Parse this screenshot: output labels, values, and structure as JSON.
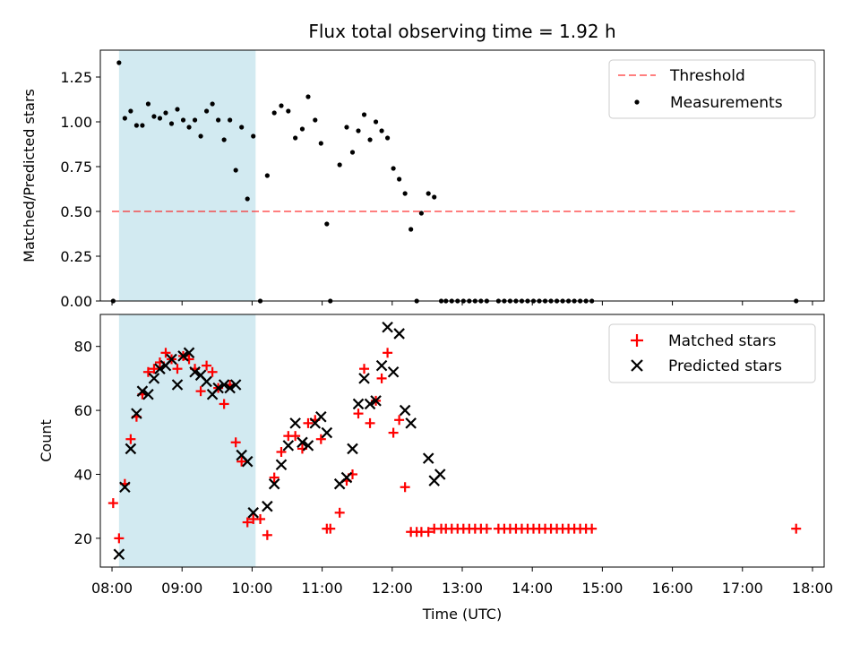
{
  "chart_data": [
    {
      "type": "scatter",
      "title": "Flux total observing time = 1.92 h",
      "xlabel": "",
      "ylabel": "Matched/Predicted stars",
      "xlim": [
        "07:50",
        "18:10"
      ],
      "ylim": [
        0,
        1.4
      ],
      "yticks": [
        0.0,
        0.25,
        0.5,
        0.75,
        1.0,
        1.25
      ],
      "ytick_labels": [
        "0.00",
        "0.25",
        "0.50",
        "0.75",
        "1.00",
        "1.25"
      ],
      "highlight_span": [
        "08:06",
        "10:03"
      ],
      "highlight_color": "#add8e6",
      "threshold": {
        "name": "Threshold",
        "y": 0.5,
        "x_range": [
          "08:00",
          "17:45"
        ],
        "color": "#ff6b6b"
      },
      "legend": {
        "placement": "top-right",
        "entries": [
          "Threshold",
          "Measurements"
        ]
      },
      "series": [
        {
          "name": "Measurements",
          "color": "#000000",
          "points": [
            [
              "08:01",
              0.0
            ],
            [
              "08:06",
              1.33
            ],
            [
              "08:11",
              1.02
            ],
            [
              "08:16",
              1.06
            ],
            [
              "08:21",
              0.98
            ],
            [
              "08:26",
              0.98
            ],
            [
              "08:31",
              1.1
            ],
            [
              "08:36",
              1.03
            ],
            [
              "08:41",
              1.02
            ],
            [
              "08:46",
              1.05
            ],
            [
              "08:51",
              0.99
            ],
            [
              "08:56",
              1.07
            ],
            [
              "09:01",
              1.01
            ],
            [
              "09:06",
              0.97
            ],
            [
              "09:11",
              1.01
            ],
            [
              "09:16",
              0.92
            ],
            [
              "09:21",
              1.06
            ],
            [
              "09:26",
              1.1
            ],
            [
              "09:31",
              1.01
            ],
            [
              "09:36",
              0.9
            ],
            [
              "09:41",
              1.01
            ],
            [
              "09:46",
              0.73
            ],
            [
              "09:51",
              0.97
            ],
            [
              "09:56",
              0.57
            ],
            [
              "10:01",
              0.92
            ],
            [
              "10:07",
              0.0
            ],
            [
              "10:13",
              0.7
            ],
            [
              "10:19",
              1.05
            ],
            [
              "10:25",
              1.09
            ],
            [
              "10:31",
              1.06
            ],
            [
              "10:37",
              0.91
            ],
            [
              "10:43",
              0.96
            ],
            [
              "10:48",
              1.14
            ],
            [
              "10:54",
              1.01
            ],
            [
              "10:59",
              0.88
            ],
            [
              "11:04",
              0.43
            ],
            [
              "11:07",
              0.0
            ],
            [
              "11:15",
              0.76
            ],
            [
              "11:21",
              0.97
            ],
            [
              "11:26",
              0.83
            ],
            [
              "11:31",
              0.95
            ],
            [
              "11:36",
              1.04
            ],
            [
              "11:41",
              0.9
            ],
            [
              "11:46",
              1.0
            ],
            [
              "11:51",
              0.95
            ],
            [
              "11:56",
              0.91
            ],
            [
              "12:01",
              0.74
            ],
            [
              "12:06",
              0.68
            ],
            [
              "12:11",
              0.6
            ],
            [
              "12:16",
              0.4
            ],
            [
              "12:21",
              0.0
            ],
            [
              "12:25",
              0.49
            ],
            [
              "12:31",
              0.6
            ],
            [
              "12:36",
              0.58
            ],
            [
              "12:42",
              0.0
            ],
            [
              "12:46",
              0.0
            ],
            [
              "12:51",
              0.0
            ],
            [
              "12:56",
              0.0
            ],
            [
              "13:01",
              0.0
            ],
            [
              "13:06",
              0.0
            ],
            [
              "13:11",
              0.0
            ],
            [
              "13:16",
              0.0
            ],
            [
              "13:21",
              0.0
            ],
            [
              "13:31",
              0.0
            ],
            [
              "13:36",
              0.0
            ],
            [
              "13:41",
              0.0
            ],
            [
              "13:46",
              0.0
            ],
            [
              "13:51",
              0.0
            ],
            [
              "13:56",
              0.0
            ],
            [
              "14:01",
              0.0
            ],
            [
              "14:06",
              0.0
            ],
            [
              "14:11",
              0.0
            ],
            [
              "14:16",
              0.0
            ],
            [
              "14:21",
              0.0
            ],
            [
              "14:26",
              0.0
            ],
            [
              "14:31",
              0.0
            ],
            [
              "14:36",
              0.0
            ],
            [
              "14:41",
              0.0
            ],
            [
              "14:46",
              0.0
            ],
            [
              "14:51",
              0.0
            ],
            [
              "17:46",
              0.0
            ]
          ]
        }
      ]
    },
    {
      "type": "scatter",
      "title": "",
      "xlabel": "Time (UTC)",
      "ylabel": "Count",
      "xlim": [
        "07:50",
        "18:10"
      ],
      "ylim": [
        11,
        90
      ],
      "yticks": [
        20,
        40,
        60,
        80
      ],
      "ytick_labels": [
        "20",
        "40",
        "60",
        "80"
      ],
      "xticks": [
        "08:00",
        "09:00",
        "10:00",
        "11:00",
        "12:00",
        "13:00",
        "14:00",
        "15:00",
        "16:00",
        "17:00",
        "18:00"
      ],
      "xtick_labels": [
        "08:00",
        "09:00",
        "10:00",
        "11:00",
        "12:00",
        "13:00",
        "14:00",
        "15:00",
        "16:00",
        "17:00",
        "18:00"
      ],
      "highlight_span": [
        "08:06",
        "10:03"
      ],
      "highlight_color": "#add8e6",
      "legend": {
        "placement": "top-right",
        "entries": [
          "Matched stars",
          "Predicted stars"
        ]
      },
      "series": [
        {
          "name": "Matched stars",
          "marker": "plus",
          "color": "#ff0000",
          "points": [
            [
              "08:01",
              31
            ],
            [
              "08:06",
              20
            ],
            [
              "08:11",
              37
            ],
            [
              "08:16",
              51
            ],
            [
              "08:21",
              58
            ],
            [
              "08:26",
              65
            ],
            [
              "08:31",
              72
            ],
            [
              "08:36",
              73
            ],
            [
              "08:41",
              75
            ],
            [
              "08:46",
              78
            ],
            [
              "08:51",
              76
            ],
            [
              "08:56",
              73
            ],
            [
              "09:01",
              77
            ],
            [
              "09:06",
              76
            ],
            [
              "09:11",
              73
            ],
            [
              "09:16",
              66
            ],
            [
              "09:21",
              74
            ],
            [
              "09:26",
              72
            ],
            [
              "09:31",
              67
            ],
            [
              "09:36",
              62
            ],
            [
              "09:41",
              68
            ],
            [
              "09:46",
              50
            ],
            [
              "09:51",
              44
            ],
            [
              "09:56",
              25
            ],
            [
              "10:01",
              26
            ],
            [
              "10:07",
              26
            ],
            [
              "10:13",
              21
            ],
            [
              "10:19",
              39
            ],
            [
              "10:25",
              47
            ],
            [
              "10:31",
              52
            ],
            [
              "10:37",
              52
            ],
            [
              "10:43",
              48
            ],
            [
              "10:48",
              56
            ],
            [
              "10:54",
              57
            ],
            [
              "10:59",
              51
            ],
            [
              "11:04",
              23
            ],
            [
              "11:07",
              23
            ],
            [
              "11:15",
              28
            ],
            [
              "11:21",
              38
            ],
            [
              "11:26",
              40
            ],
            [
              "11:31",
              59
            ],
            [
              "11:36",
              73
            ],
            [
              "11:41",
              56
            ],
            [
              "11:46",
              63
            ],
            [
              "11:51",
              70
            ],
            [
              "11:56",
              78
            ],
            [
              "12:01",
              53
            ],
            [
              "12:06",
              57
            ],
            [
              "12:11",
              36
            ],
            [
              "12:16",
              22
            ],
            [
              "12:21",
              22
            ],
            [
              "12:25",
              22
            ],
            [
              "12:31",
              22
            ],
            [
              "12:36",
              23
            ],
            [
              "12:42",
              23
            ],
            [
              "12:46",
              23
            ],
            [
              "12:51",
              23
            ],
            [
              "12:56",
              23
            ],
            [
              "13:01",
              23
            ],
            [
              "13:06",
              23
            ],
            [
              "13:11",
              23
            ],
            [
              "13:16",
              23
            ],
            [
              "13:21",
              23
            ],
            [
              "13:31",
              23
            ],
            [
              "13:36",
              23
            ],
            [
              "13:41",
              23
            ],
            [
              "13:46",
              23
            ],
            [
              "13:51",
              23
            ],
            [
              "13:56",
              23
            ],
            [
              "14:01",
              23
            ],
            [
              "14:06",
              23
            ],
            [
              "14:11",
              23
            ],
            [
              "14:16",
              23
            ],
            [
              "14:21",
              23
            ],
            [
              "14:26",
              23
            ],
            [
              "14:31",
              23
            ],
            [
              "14:36",
              23
            ],
            [
              "14:41",
              23
            ],
            [
              "14:46",
              23
            ],
            [
              "14:51",
              23
            ],
            [
              "17:46",
              23
            ]
          ]
        },
        {
          "name": "Predicted stars",
          "marker": "x",
          "color": "#000000",
          "points": [
            [
              "08:06",
              15
            ],
            [
              "08:11",
              36
            ],
            [
              "08:16",
              48
            ],
            [
              "08:21",
              59
            ],
            [
              "08:26",
              66
            ],
            [
              "08:31",
              65
            ],
            [
              "08:36",
              70
            ],
            [
              "08:41",
              73
            ],
            [
              "08:46",
              74
            ],
            [
              "08:51",
              76
            ],
            [
              "08:56",
              68
            ],
            [
              "09:01",
              77
            ],
            [
              "09:06",
              78
            ],
            [
              "09:11",
              72
            ],
            [
              "09:16",
              71
            ],
            [
              "09:21",
              69
            ],
            [
              "09:26",
              65
            ],
            [
              "09:31",
              67
            ],
            [
              "09:36",
              68
            ],
            [
              "09:41",
              67
            ],
            [
              "09:46",
              68
            ],
            [
              "09:51",
              46
            ],
            [
              "09:56",
              44
            ],
            [
              "10:01",
              28
            ],
            [
              "10:13",
              30
            ],
            [
              "10:19",
              37
            ],
            [
              "10:25",
              43
            ],
            [
              "10:31",
              49
            ],
            [
              "10:37",
              56
            ],
            [
              "10:43",
              50
            ],
            [
              "10:48",
              49
            ],
            [
              "10:54",
              56
            ],
            [
              "10:59",
              58
            ],
            [
              "11:04",
              53
            ],
            [
              "11:15",
              37
            ],
            [
              "11:21",
              39
            ],
            [
              "11:26",
              48
            ],
            [
              "11:31",
              62
            ],
            [
              "11:36",
              70
            ],
            [
              "11:41",
              62
            ],
            [
              "11:46",
              63
            ],
            [
              "11:51",
              74
            ],
            [
              "11:56",
              86
            ],
            [
              "12:01",
              72
            ],
            [
              "12:06",
              84
            ],
            [
              "12:11",
              60
            ],
            [
              "12:16",
              56
            ],
            [
              "12:31",
              45
            ],
            [
              "12:36",
              38
            ],
            [
              "12:41",
              40
            ]
          ]
        }
      ]
    }
  ]
}
